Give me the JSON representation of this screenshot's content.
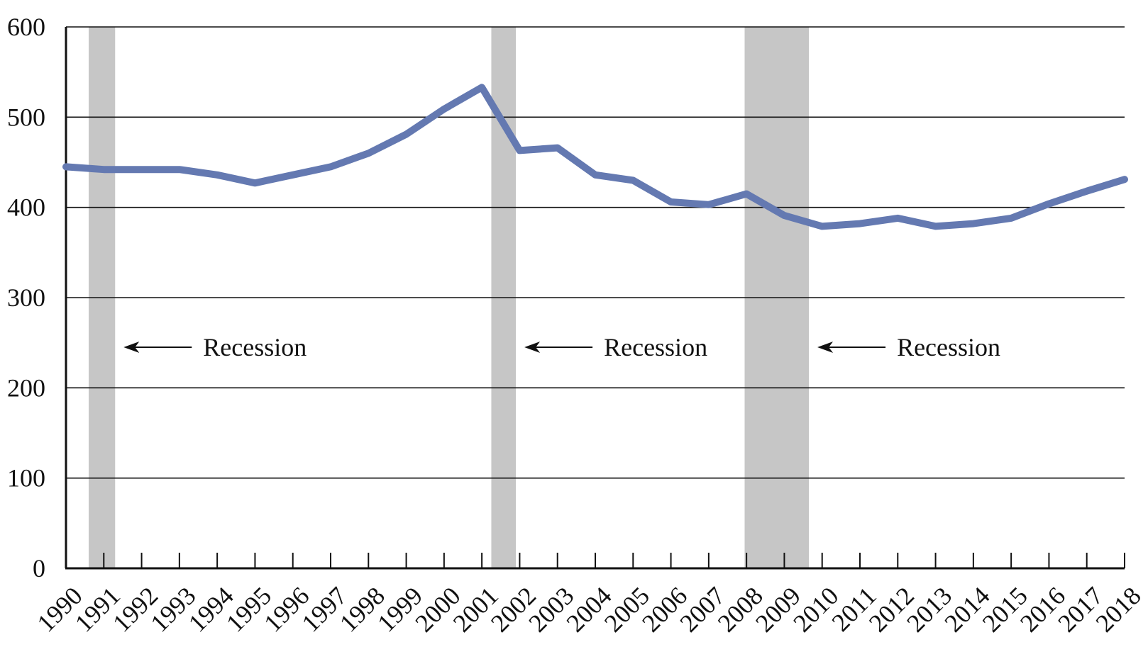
{
  "chart_data": {
    "type": "line",
    "title": "",
    "xlabel": "",
    "ylabel": "",
    "x": [
      1990,
      1991,
      1992,
      1993,
      1994,
      1995,
      1996,
      1997,
      1998,
      1999,
      2000,
      2001,
      2002,
      2003,
      2004,
      2005,
      2006,
      2007,
      2008,
      2009,
      2010,
      2011,
      2012,
      2013,
      2014,
      2015,
      2016,
      2017,
      2018
    ],
    "x_tick_labels": [
      "1990",
      "1991",
      "1992",
      "1993",
      "1994",
      "1995",
      "1996",
      "1997",
      "1998",
      "1999",
      "2000",
      "2001",
      "2002",
      "2003",
      "2004",
      "2005",
      "2006",
      "2007",
      "2008",
      "2009",
      "2010",
      "2011",
      "2012",
      "2013",
      "2014",
      "2015",
      "2016",
      "2017",
      "2018"
    ],
    "series": [
      {
        "color": "#6479b1",
        "values": [
          445,
          442,
          442,
          442,
          436,
          427,
          436,
          445,
          460,
          481,
          509,
          533,
          463,
          466,
          436,
          430,
          406,
          403,
          415,
          391,
          379,
          382,
          388,
          379,
          382,
          388,
          404,
          418,
          431
        ]
      }
    ],
    "ylim": [
      0,
      600
    ],
    "y_ticks": [
      0,
      100,
      200,
      300,
      400,
      500,
      600
    ],
    "y_tick_labels": [
      "0",
      "100",
      "200",
      "300",
      "400",
      "500",
      "600"
    ],
    "grid": true,
    "recessions": [
      {
        "start": 1990.6,
        "end": 1991.3,
        "label": "Recession"
      },
      {
        "start": 2001.25,
        "end": 2001.9,
        "label": "Recession"
      },
      {
        "start": 2007.95,
        "end": 2009.65,
        "label": "Recession"
      }
    ],
    "recession_color": "#c6c6c6"
  }
}
